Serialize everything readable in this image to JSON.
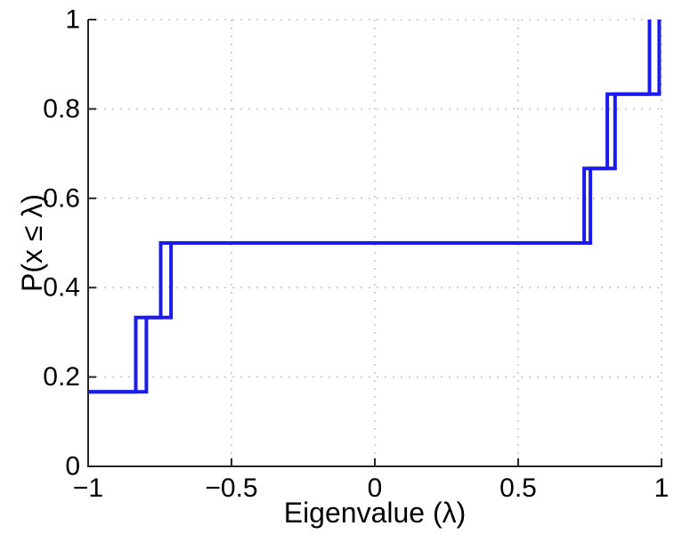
{
  "figure": {
    "background_color": "#ffffff",
    "description": "Empirical CDF step plot of eigenvalues, two overlaid blue stair curves"
  },
  "chart_data": {
    "type": "line",
    "subtype": "ecdf-stairs",
    "title": "",
    "xlabel": "Eigenvalue (λ)",
    "ylabel": "P(x ≤ λ)",
    "xlim": [
      -1,
      1
    ],
    "ylim": [
      0,
      1
    ],
    "x_ticks": [
      -1,
      -0.5,
      0,
      0.5,
      1
    ],
    "x_tick_labels": [
      "−1",
      "−0.5",
      "0",
      "0.5",
      "1"
    ],
    "y_ticks": [
      0,
      0.2,
      0.4,
      0.6,
      0.8,
      1
    ],
    "y_tick_labels": [
      "0",
      "0.2",
      "0.4",
      "0.6",
      "0.8",
      "1"
    ],
    "grid": "dotted",
    "legend": "none",
    "grid_color": "#c6c6c6",
    "axis_color": "#262626",
    "tick_label_color": "#000000",
    "line_color": "#1b1bf0",
    "line_width": 4,
    "cdf_levels": [
      0.166667,
      0.333333,
      0.5,
      0.666667,
      0.833333,
      1.0
    ],
    "series": [
      {
        "name": "ecdf-curve-1",
        "eigenvalues": [
          -1.0,
          -0.834,
          -0.747,
          0.73,
          0.811,
          0.958
        ]
      },
      {
        "name": "ecdf-curve-2",
        "eigenvalues": [
          -1.0,
          -0.797,
          -0.711,
          0.752,
          0.838,
          0.992
        ]
      }
    ]
  }
}
